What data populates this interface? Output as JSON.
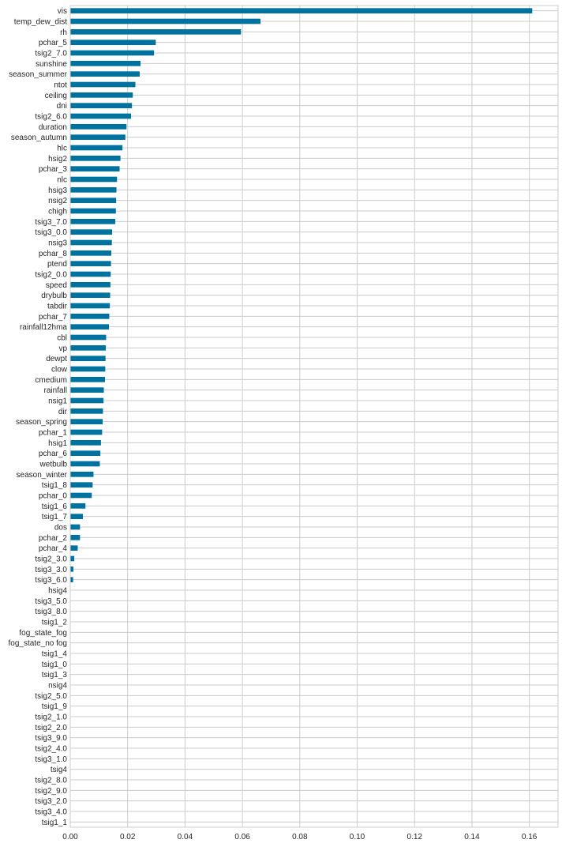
{
  "chart_data": {
    "type": "bar",
    "orientation": "horizontal",
    "title": "",
    "xlabel": "",
    "ylabel": "",
    "xlim": [
      0,
      0.17
    ],
    "x_ticks": [
      {
        "value": 0.0,
        "label": "0.00"
      },
      {
        "value": 0.02,
        "label": "0.02"
      },
      {
        "value": 0.04,
        "label": "0.04"
      },
      {
        "value": 0.06,
        "label": "0.06"
      },
      {
        "value": 0.08,
        "label": "0.08"
      },
      {
        "value": 0.1,
        "label": "0.10"
      },
      {
        "value": 0.12,
        "label": "0.12"
      },
      {
        "value": 0.14,
        "label": "0.14"
      },
      {
        "value": 0.16,
        "label": "0.16"
      }
    ],
    "grid": true,
    "bar_color": "#0072a0",
    "grid_color": "#cccccc",
    "bars": [
      {
        "label": "vis",
        "value": 0.161
      },
      {
        "label": "temp_dew_dist",
        "value": 0.0663
      },
      {
        "label": "rh",
        "value": 0.0595
      },
      {
        "label": "pchar_5",
        "value": 0.0298
      },
      {
        "label": "tsig2_7.0",
        "value": 0.0292
      },
      {
        "label": "sunshine",
        "value": 0.0245
      },
      {
        "label": "season_summer",
        "value": 0.0242
      },
      {
        "label": "ntot",
        "value": 0.0227
      },
      {
        "label": "ceiling",
        "value": 0.0218
      },
      {
        "label": "dni",
        "value": 0.0215
      },
      {
        "label": "tsig2_6.0",
        "value": 0.0212
      },
      {
        "label": "duration",
        "value": 0.0196
      },
      {
        "label": "season_autumn",
        "value": 0.0192
      },
      {
        "label": "hlc",
        "value": 0.0182
      },
      {
        "label": "hsig2",
        "value": 0.0175
      },
      {
        "label": "pchar_3",
        "value": 0.0172
      },
      {
        "label": "nlc",
        "value": 0.0163
      },
      {
        "label": "hsig3",
        "value": 0.0161
      },
      {
        "label": "nsig2",
        "value": 0.016
      },
      {
        "label": "chigh",
        "value": 0.0159
      },
      {
        "label": "tsig3_7.0",
        "value": 0.0157
      },
      {
        "label": "tsig3_0.0",
        "value": 0.0146
      },
      {
        "label": "nsig3",
        "value": 0.0145
      },
      {
        "label": "pchar_8",
        "value": 0.0143
      },
      {
        "label": "ptend",
        "value": 0.0142
      },
      {
        "label": "tsig2_0.0",
        "value": 0.0141
      },
      {
        "label": "speed",
        "value": 0.014
      },
      {
        "label": "drybulb",
        "value": 0.0139
      },
      {
        "label": "tabdir",
        "value": 0.0138
      },
      {
        "label": "pchar_7",
        "value": 0.0136
      },
      {
        "label": "rainfall12hma",
        "value": 0.0135
      },
      {
        "label": "cbl",
        "value": 0.0125
      },
      {
        "label": "vp",
        "value": 0.0124
      },
      {
        "label": "dewpt",
        "value": 0.0123
      },
      {
        "label": "clow",
        "value": 0.0122
      },
      {
        "label": "cmedium",
        "value": 0.0121
      },
      {
        "label": "rainfall",
        "value": 0.0117
      },
      {
        "label": "nsig1",
        "value": 0.0116
      },
      {
        "label": "dir",
        "value": 0.0114
      },
      {
        "label": "season_spring",
        "value": 0.0113
      },
      {
        "label": "pchar_1",
        "value": 0.0111
      },
      {
        "label": "hsig1",
        "value": 0.0107
      },
      {
        "label": "pchar_6",
        "value": 0.0105
      },
      {
        "label": "wetbulb",
        "value": 0.0103
      },
      {
        "label": "season_winter",
        "value": 0.0081
      },
      {
        "label": "tsig1_8",
        "value": 0.0078
      },
      {
        "label": "pchar_0",
        "value": 0.0075
      },
      {
        "label": "tsig1_6",
        "value": 0.0053
      },
      {
        "label": "tsig1_7",
        "value": 0.0044
      },
      {
        "label": "dos",
        "value": 0.0034
      },
      {
        "label": "pchar_2",
        "value": 0.0034
      },
      {
        "label": "pchar_4",
        "value": 0.0026
      },
      {
        "label": "tsig2_3.0",
        "value": 0.0014
      },
      {
        "label": "tsig3_3.0",
        "value": 0.0011
      },
      {
        "label": "tsig3_6.0",
        "value": 0.001
      },
      {
        "label": "hsig4",
        "value": 0
      },
      {
        "label": "tsig3_5.0",
        "value": 0
      },
      {
        "label": "tsig3_8.0",
        "value": 0
      },
      {
        "label": "tsig1_2",
        "value": 0
      },
      {
        "label": "fog_state_fog",
        "value": 0
      },
      {
        "label": "fog_state_no fog",
        "value": 0
      },
      {
        "label": "tsig1_4",
        "value": 0
      },
      {
        "label": "tsig1_0",
        "value": 0
      },
      {
        "label": "tsig1_3",
        "value": 0
      },
      {
        "label": "nsig4",
        "value": 0
      },
      {
        "label": "tsig2_5.0",
        "value": 0
      },
      {
        "label": "tsig1_9",
        "value": 0
      },
      {
        "label": "tsig2_1.0",
        "value": 0
      },
      {
        "label": "tsig2_2.0",
        "value": 0
      },
      {
        "label": "tsig3_9.0",
        "value": 0
      },
      {
        "label": "tsig2_4.0",
        "value": 0
      },
      {
        "label": "tsig3_1.0",
        "value": 0
      },
      {
        "label": "tsig4",
        "value": 0
      },
      {
        "label": "tsig2_8.0",
        "value": 0
      },
      {
        "label": "tsig2_9.0",
        "value": 0
      },
      {
        "label": "tsig3_2.0",
        "value": 0
      },
      {
        "label": "tsig3_4.0",
        "value": 0
      },
      {
        "label": "tsig1_1",
        "value": 0
      }
    ]
  }
}
